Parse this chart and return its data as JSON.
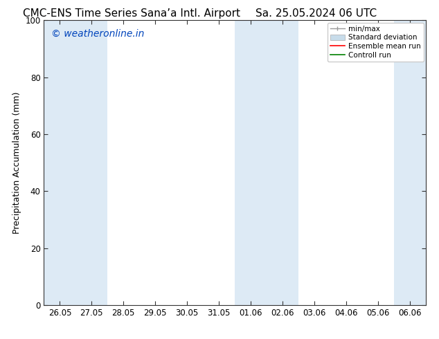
{
  "title": "CMC-ENS Time Series Sana’a Intl. Airport",
  "title2": "Sa. 25.05.2024 06 UTC",
  "ylabel": "Precipitation Accumulation (mm)",
  "ylim": [
    0,
    100
  ],
  "yticks": [
    0,
    20,
    40,
    60,
    80,
    100
  ],
  "bg_color": "#ffffff",
  "plot_bg_color": "#ffffff",
  "shaded_band_color": "#ddeaf5",
  "watermark_text": "© weatheronline.in",
  "watermark_color": "#0044bb",
  "x_tick_labels": [
    "26.05",
    "27.05",
    "28.05",
    "29.05",
    "30.05",
    "31.05",
    "01.06",
    "02.06",
    "03.06",
    "04.06",
    "05.06",
    "06.06"
  ],
  "x_tick_positions": [
    0,
    1,
    2,
    3,
    4,
    5,
    6,
    7,
    8,
    9,
    10,
    11
  ],
  "shaded_columns": [
    0,
    1,
    6,
    7,
    11
  ],
  "legend_labels": [
    "min/max",
    "Standard deviation",
    "Ensemble mean run",
    "Controll run"
  ],
  "legend_colors": [
    "#999999",
    "#c8dcea",
    "#ff0000",
    "#008000"
  ],
  "title_fontsize": 11,
  "tick_fontsize": 8.5,
  "ylabel_fontsize": 9,
  "watermark_fontsize": 10,
  "num_cols": 12
}
